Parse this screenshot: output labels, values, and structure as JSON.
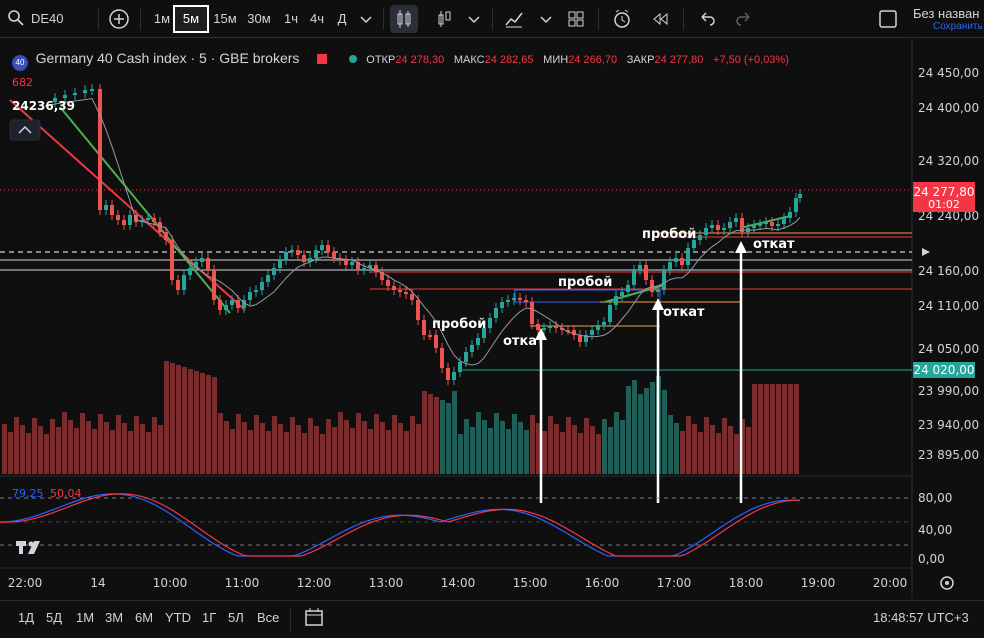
{
  "toolbar": {
    "symbol": "DE40",
    "intervals": [
      "1м",
      "5м",
      "15м",
      "30м",
      "1ч",
      "4ч",
      "Д"
    ],
    "active_interval": "5м",
    "layout_title": "Без назван",
    "layout_save": "Сохранить"
  },
  "legend": {
    "logo": "40",
    "title": "Germany 40 Cash index · 5 · GBE brokers",
    "open_label": "ОТКР",
    "open": "24 278,30",
    "high_label": "МАКС",
    "high": "24 282,65",
    "low_label": "МИН",
    "low": "24 266,70",
    "close_label": "ЗАКР",
    "close": "24 277,80",
    "change": "+7,50 (+0,03%)"
  },
  "overlay": {
    "volume_val": "682",
    "price_label": "24236,39"
  },
  "annotations": [
    "пробой",
    "откат",
    "пробой",
    "откат",
    "пробой",
    "откат"
  ],
  "price_axis": {
    "ticks": [
      "24 450,00",
      "24 400,00",
      "24 320,00",
      "24 240,00",
      "24 160,00",
      "24 110,00",
      "24 050,00",
      "24 020,00",
      "23 990,00",
      "23 940,00",
      "23 895,00"
    ],
    "last_price": "24 277,80",
    "countdown": "01:02",
    "level_label": "24 020,00"
  },
  "oscillator": {
    "k_value": "79,25",
    "d_value": "50,04",
    "ticks": [
      "80,00",
      "40,00",
      "0,00"
    ]
  },
  "time_axis": [
    "22:00",
    "14",
    "10:00",
    "11:00",
    "12:00",
    "13:00",
    "14:00",
    "15:00",
    "16:00",
    "17:00",
    "18:00",
    "19:00",
    "20:00"
  ],
  "bottom": {
    "ranges": [
      "1Д",
      "5Д",
      "1М",
      "3М",
      "6М",
      "YTD",
      "1Г",
      "5Л",
      "Все"
    ],
    "clock": "18:48:57 UTC+3"
  },
  "colors": {
    "up": "#26a69a",
    "down": "#ef5350",
    "vol_up": "#1f5f58",
    "vol_down": "#7a2b2b",
    "k_line": "#2962ff",
    "d_line": "#f23645",
    "accent": "#2962ff"
  },
  "icons": [
    "search-icon",
    "plus-circle-icon",
    "chevron-down-icon",
    "candles-icon",
    "indicators-icon",
    "layout-grid-icon",
    "replay-icon",
    "undo-icon",
    "redo-icon",
    "calendar-icon",
    "settings-icon",
    "tradingview-logo-icon"
  ]
}
